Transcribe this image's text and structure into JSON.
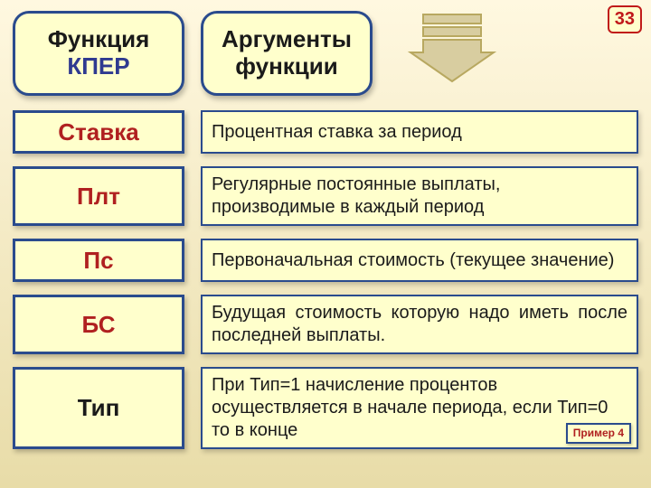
{
  "colors": {
    "bg_top": "#fff8e0",
    "bg_bottom": "#e8dca8",
    "box_fill": "#ffffcc",
    "border_dark": "#2a4b8d",
    "text_dark": "#1a1a1a",
    "accent_red": "#b02020",
    "title_line2": "#2f3a90",
    "page_num": "#c01a1a",
    "arrow_fill": "#d8cda0",
    "arrow_stroke": "#b8a860"
  },
  "page_number": "33",
  "title": {
    "line1": "Функция",
    "line2": "КПЕР"
  },
  "args_title": {
    "line1": "Аргументы",
    "line2": "функции"
  },
  "rows": [
    {
      "label": "Ставка",
      "desc": "Процентная ставка за период",
      "justify": false,
      "accent": true
    },
    {
      "label": "Плт",
      "desc": "Регулярные постоянные выплаты, производимые в каждый период",
      "justify": false,
      "accent": true
    },
    {
      "label": "Пс",
      "desc": "Первоначальная стоимость (текущее значение)",
      "justify": false,
      "accent": true
    },
    {
      "label": "БС",
      "desc": "Будущая стоимость которую надо иметь после последней выплаты.",
      "justify": true,
      "accent": true
    },
    {
      "label": "Тип",
      "desc": "При Тип=1 начисление процентов осуществляется в начале периода, если Тип=0 то в конце",
      "justify": false,
      "accent": false
    }
  ],
  "example_btn": "Пример 4"
}
